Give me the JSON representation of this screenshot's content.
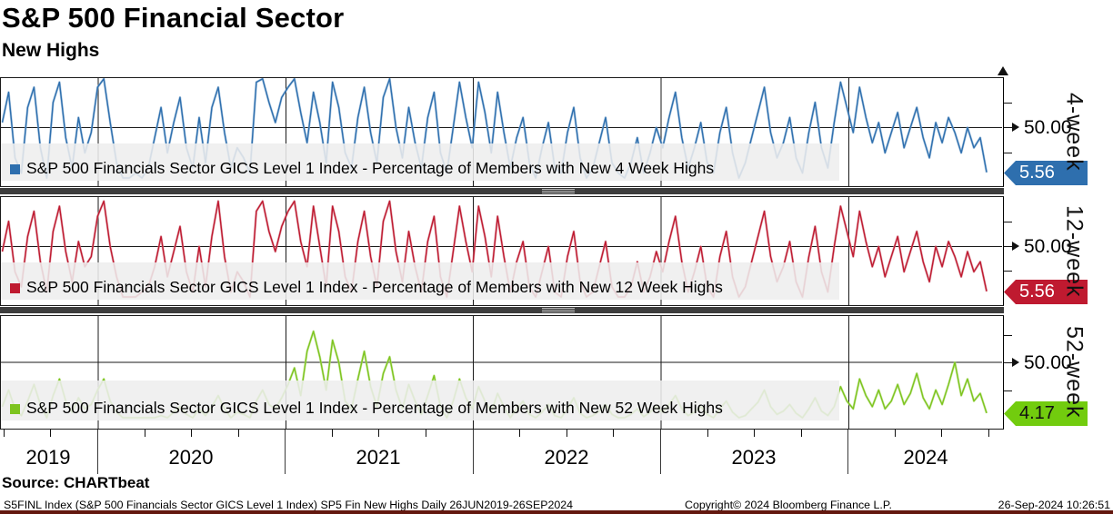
{
  "title": "S&P 500 Financial Sector",
  "subtitle": "New Highs",
  "source_label": "Source: CHARTbeat",
  "footer": {
    "left": "S5FINL Index (S&P 500 Financials Sector GICS Level 1 Index) SP5 Fin New Highs  Daily 26JUN2019-26SEP2024",
    "center": "Copyright© 2024 Bloomberg Finance L.P.",
    "right": "26-Sep-2024 10:26:51"
  },
  "x_axis": {
    "year_labels": [
      "2019",
      "2020",
      "2021",
      "2022",
      "2023",
      "2024"
    ],
    "range": "26JUN2019-26SEP2024"
  },
  "chart_data": [
    {
      "type": "line",
      "name": "4-week",
      "legend": "S&P 500 Financials Sector GICS Level 1 Index - Percentage of Members with New 4 Week Highs",
      "color": "#2e6fae",
      "color_light": "#8fb3d6",
      "badge_color": "#2e6fae",
      "badge_text_color": "#ffffff",
      "last_value": 5.56,
      "last_value_label": "5.56",
      "ylim": [
        0,
        100
      ],
      "ytick_labels": [
        "50.00"
      ],
      "x_start": "26JUN2019",
      "x_end": "26SEP2024",
      "values": [
        55,
        85,
        20,
        5,
        70,
        90,
        30,
        0,
        75,
        95,
        40,
        10,
        60,
        25,
        45,
        90,
        100,
        55,
        15,
        0,
        0,
        5,
        0,
        10,
        40,
        70,
        25,
        55,
        80,
        30,
        10,
        60,
        15,
        70,
        90,
        45,
        10,
        30,
        20,
        5,
        95,
        100,
        75,
        55,
        80,
        90,
        100,
        65,
        35,
        85,
        55,
        15,
        95,
        70,
        25,
        10,
        60,
        90,
        45,
        15,
        80,
        100,
        50,
        20,
        70,
        35,
        10,
        60,
        85,
        25,
        5,
        50,
        95,
        60,
        30,
        95,
        65,
        25,
        85,
        45,
        10,
        40,
        60,
        15,
        0,
        30,
        55,
        10,
        5,
        45,
        70,
        20,
        0,
        10,
        35,
        60,
        15,
        5,
        0,
        15,
        40,
        5,
        25,
        50,
        30,
        60,
        85,
        40,
        10,
        30,
        55,
        15,
        5,
        45,
        70,
        25,
        0,
        15,
        40,
        65,
        90,
        45,
        20,
        35,
        60,
        20,
        5,
        45,
        75,
        30,
        10,
        55,
        95,
        70,
        45,
        90,
        60,
        35,
        55,
        25,
        45,
        65,
        30,
        50,
        70,
        40,
        20,
        55,
        35,
        60,
        45,
        25,
        50,
        30,
        40,
        5.56
      ]
    },
    {
      "type": "line",
      "name": "12-week",
      "legend": "S&P 500 Financials Sector GICS Level 1 Index - Percentage of Members with New 12 Week Highs",
      "color": "#bf1a30",
      "color_light": "#d98e99",
      "badge_color": "#bf1a30",
      "badge_text_color": "#ffffff",
      "last_value": 5.56,
      "last_value_label": "5.56",
      "ylim": [
        0,
        100
      ],
      "ytick_labels": [
        "50.00"
      ],
      "x_start": "26JUN2019",
      "x_end": "26SEP2024",
      "values": [
        45,
        75,
        25,
        10,
        60,
        85,
        35,
        5,
        65,
        90,
        45,
        15,
        55,
        30,
        40,
        80,
        95,
        50,
        20,
        0,
        0,
        0,
        5,
        10,
        30,
        60,
        20,
        45,
        70,
        25,
        5,
        50,
        10,
        60,
        95,
        40,
        5,
        25,
        15,
        0,
        85,
        95,
        65,
        45,
        70,
        85,
        95,
        55,
        30,
        90,
        50,
        10,
        90,
        65,
        20,
        5,
        55,
        85,
        40,
        10,
        75,
        95,
        45,
        15,
        65,
        30,
        5,
        55,
        80,
        20,
        0,
        45,
        90,
        55,
        25,
        90,
        60,
        20,
        80,
        40,
        5,
        35,
        55,
        10,
        0,
        25,
        50,
        5,
        0,
        40,
        65,
        15,
        0,
        5,
        30,
        55,
        10,
        0,
        0,
        10,
        35,
        5,
        20,
        45,
        25,
        55,
        80,
        35,
        5,
        25,
        50,
        10,
        0,
        40,
        65,
        20,
        0,
        10,
        35,
        60,
        85,
        40,
        15,
        30,
        55,
        15,
        0,
        40,
        70,
        25,
        5,
        50,
        90,
        65,
        40,
        85,
        55,
        30,
        50,
        20,
        40,
        60,
        25,
        45,
        65,
        35,
        15,
        50,
        30,
        55,
        40,
        20,
        45,
        25,
        35,
        5.56
      ]
    },
    {
      "type": "line",
      "name": "52-week",
      "legend": "S&P 500 Financials Sector GICS Level 1 Index - Percentage of Members with New 52 Week Highs",
      "color": "#7dc41f",
      "color_light": "#b9e082",
      "badge_color": "#72cc0e",
      "badge_text_color": "#111111",
      "last_value": 4.17,
      "last_value_label": "4.17",
      "ylim": [
        0,
        100
      ],
      "ytick_labels": [
        "50.00"
      ],
      "x_start": "26JUN2019",
      "x_end": "26SEP2024",
      "values": [
        10,
        25,
        8,
        2,
        15,
        30,
        12,
        0,
        20,
        35,
        15,
        5,
        18,
        8,
        12,
        25,
        35,
        15,
        5,
        0,
        0,
        0,
        0,
        0,
        0,
        2,
        0,
        5,
        10,
        3,
        0,
        8,
        2,
        10,
        20,
        8,
        0,
        5,
        3,
        0,
        15,
        25,
        12,
        8,
        18,
        30,
        45,
        20,
        60,
        78,
        55,
        25,
        70,
        50,
        15,
        8,
        35,
        60,
        28,
        10,
        40,
        55,
        25,
        8,
        30,
        15,
        3,
        20,
        38,
        10,
        0,
        15,
        35,
        18,
        8,
        28,
        15,
        5,
        22,
        10,
        0,
        8,
        15,
        3,
        0,
        5,
        12,
        2,
        0,
        8,
        18,
        4,
        0,
        2,
        6,
        12,
        3,
        0,
        0,
        3,
        8,
        1,
        5,
        10,
        5,
        12,
        20,
        8,
        2,
        5,
        10,
        3,
        0,
        8,
        15,
        5,
        0,
        2,
        8,
        14,
        25,
        10,
        3,
        6,
        12,
        4,
        0,
        8,
        18,
        6,
        2,
        10,
        28,
        15,
        8,
        35,
        20,
        10,
        25,
        8,
        15,
        30,
        12,
        22,
        40,
        18,
        8,
        25,
        12,
        30,
        50,
        20,
        35,
        15,
        22,
        4.17
      ]
    }
  ]
}
